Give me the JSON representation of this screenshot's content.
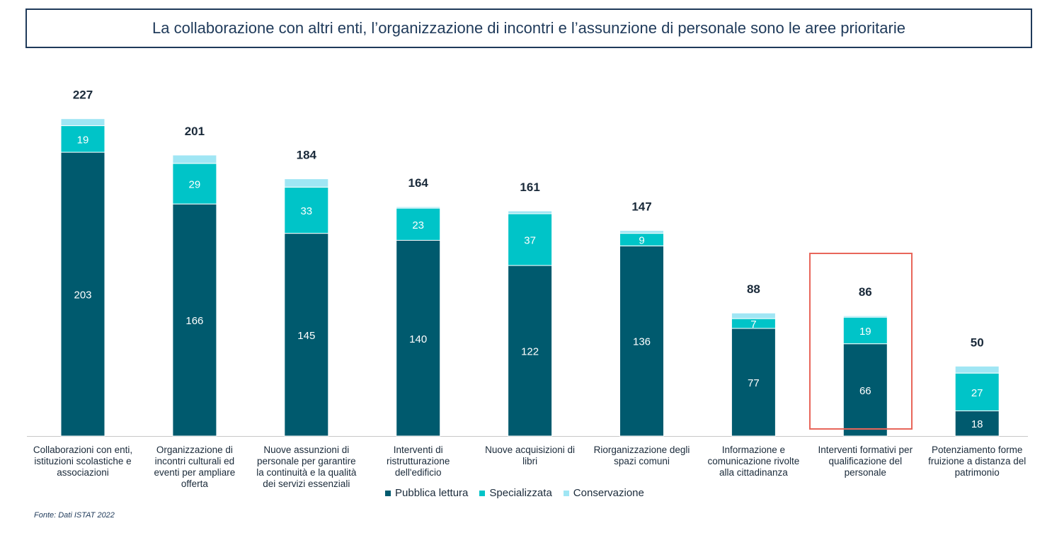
{
  "header": {
    "title": "La collaborazione con altri enti, l’organizzazione di incontri e l’assunzione di personale sono le aree prioritarie"
  },
  "footer": {
    "source": "Fonte: Dati ISTAT 2022"
  },
  "colors": {
    "pubblica": "#005a6e",
    "specializzata": "#00c4c8",
    "conservazione": "#a0e6f4",
    "highlight": "#e8665a"
  },
  "chart_data": {
    "type": "bar",
    "stacked": true,
    "categories": [
      [
        "Collaborazioni con enti,",
        "istituzioni scolastiche e",
        "associazioni"
      ],
      [
        "Organizzazione di",
        "incontri culturali ed",
        "eventi per ampliare",
        "offerta"
      ],
      [
        "Nuove assunzioni di",
        "personale per garantire",
        "la continuità e la qualità",
        "dei servizi essenziali"
      ],
      [
        "Interventi di",
        "ristrutturazione",
        "dell'edificio"
      ],
      [
        "Nuove acquisizioni di",
        "libri"
      ],
      [
        "Riorganizzazione degli",
        "spazi comuni"
      ],
      [
        "Informazione e",
        "comunicazione rivolte",
        "alla cittadinanza"
      ],
      [
        "Interventi formativi per",
        "qualificazione del",
        "personale"
      ],
      [
        "Potenziamento forme",
        "fruizione a distanza del",
        "patrimonio"
      ]
    ],
    "series": [
      {
        "name": "Pubblica lettura",
        "values": [
          203,
          166,
          145,
          140,
          122,
          136,
          77,
          66,
          18
        ]
      },
      {
        "name": "Specializzata",
        "values": [
          19,
          29,
          33,
          23,
          37,
          9,
          7,
          19,
          27
        ]
      },
      {
        "name": "Conservazione",
        "values": [
          5,
          6,
          6,
          1,
          2,
          2,
          4,
          1,
          5
        ]
      }
    ],
    "totals": [
      227,
      201,
      184,
      164,
      161,
      147,
      88,
      86,
      50
    ],
    "legend_position": "bottom",
    "highlighted_category_index": 7,
    "grid": false
  }
}
